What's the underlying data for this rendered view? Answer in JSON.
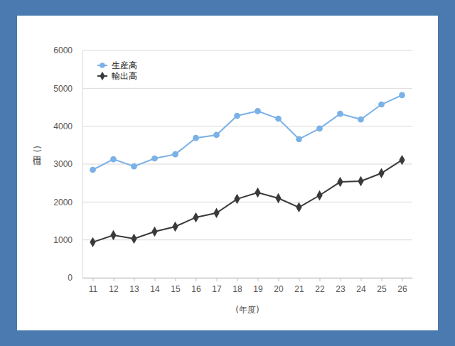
{
  "chart_data": {
    "type": "line",
    "x_label": "(年度)",
    "y_label": "(億円)",
    "categories": [
      "11",
      "12",
      "13",
      "14",
      "15",
      "16",
      "17",
      "18",
      "19",
      "20",
      "21",
      "22",
      "23",
      "24",
      "25",
      "26"
    ],
    "series": [
      {
        "name": "生産高",
        "color": "#7ab1e6",
        "marker": "circle",
        "values": [
          2850,
          3130,
          2940,
          3150,
          3260,
          3690,
          3770,
          4275,
          4400,
          4200,
          3660,
          3940,
          4330,
          4180,
          4575,
          4820
        ]
      },
      {
        "name": "輸出高",
        "color": "#3a3a3a",
        "marker": "diamond",
        "values": [
          940,
          1125,
          1030,
          1220,
          1350,
          1595,
          1710,
          2080,
          2250,
          2100,
          1860,
          2175,
          2530,
          2550,
          2760,
          3110
        ]
      }
    ],
    "ylim": [
      0,
      6000
    ],
    "yticks": [
      0,
      1000,
      2000,
      3000,
      4000,
      5000,
      6000
    ],
    "grid": true,
    "legend": "top-left"
  }
}
